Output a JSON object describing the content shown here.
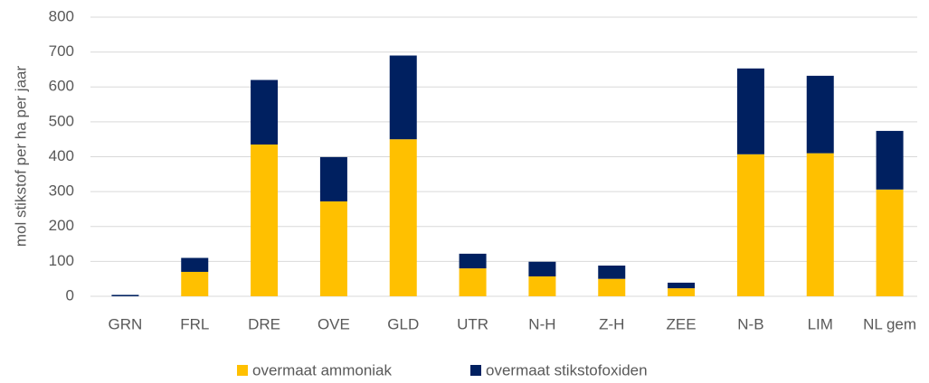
{
  "chart_data": {
    "type": "bar",
    "stacked": true,
    "y_label": "mol stikstof per ha per jaar",
    "categories": [
      "GRN",
      "FRL",
      "DRE",
      "OVE",
      "GLD",
      "UTR",
      "N-H",
      "Z-H",
      "ZEE",
      "N-B",
      "LIM",
      "NL gem"
    ],
    "series": [
      {
        "name": "overmaat ammoniak",
        "color": "#ffc000",
        "values": [
          0,
          70,
          435,
          272,
          450,
          80,
          57,
          50,
          23,
          407,
          410,
          306
        ]
      },
      {
        "name": "overmaat stikstofoxiden",
        "color": "#002060",
        "values": [
          4,
          40,
          185,
          127,
          240,
          42,
          42,
          38,
          16,
          246,
          222,
          168
        ]
      }
    ],
    "ylim": [
      0,
      800
    ],
    "yticks": [
      0,
      100,
      200,
      300,
      400,
      500,
      600,
      700,
      800
    ],
    "grid": true,
    "legend": "bottom"
  }
}
